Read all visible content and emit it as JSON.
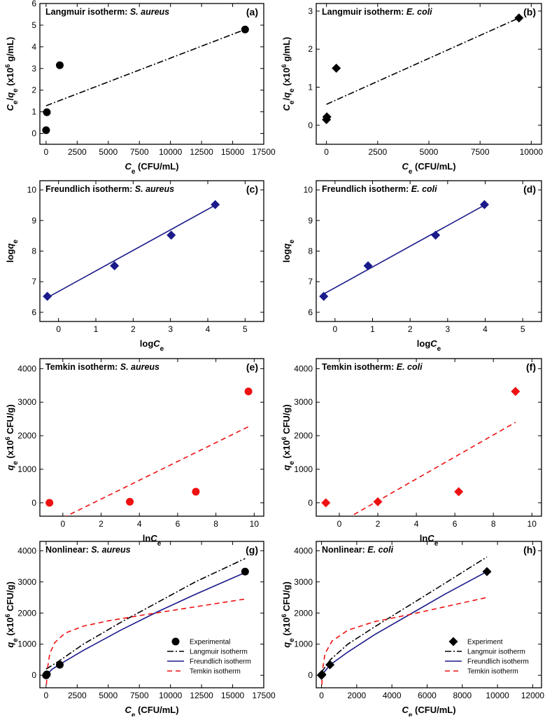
{
  "figure_labels": {
    "a": {
      "title_prefix": "Langmuir isotherm: ",
      "organism": "S. aureus",
      "label": "(a)"
    },
    "b": {
      "title_prefix": "Langmuir isotherm: ",
      "organism": "E. coli",
      "label": "(b)"
    },
    "c": {
      "title_prefix": "Freundlich isotherm: ",
      "organism": "S. aureus",
      "label": "(c)"
    },
    "d": {
      "title_prefix": "Freundlich isotherm: ",
      "organism": "E. coli",
      "label": "(d)"
    },
    "e": {
      "title_prefix": "Temkin isotherm: ",
      "organism": "S. aureus",
      "label": "(e)"
    },
    "f": {
      "title_prefix": "Temkin isotherm: ",
      "organism": "E. coli",
      "label": "(f)"
    },
    "g": {
      "title_prefix": "Nonlinear: ",
      "organism": "S. aureus",
      "label": "(g)"
    },
    "h": {
      "title_prefix": "Nonlinear: ",
      "organism": "E. coli",
      "label": "(h)"
    }
  },
  "colors": {
    "navy": "#1a1a8a",
    "red": "#ee1111",
    "black": "#000000"
  },
  "chart_data": [
    {
      "id": "a",
      "type": "scatter",
      "xlabel": "Ce (CFU/mL)",
      "ylabel": "Ce/qe (x10^6 g/mL)",
      "xlim": [
        -500,
        17500
      ],
      "ylim": [
        -0.5,
        6
      ],
      "xticks": [
        0,
        2500,
        5000,
        7500,
        10000,
        12500,
        15000,
        17500
      ],
      "yticks": [
        0,
        1,
        2,
        3,
        4,
        5,
        6
      ],
      "points": [
        {
          "x": 0,
          "y": 0.15
        },
        {
          "x": 60,
          "y": 0.98
        },
        {
          "x": 1100,
          "y": 3.15
        },
        {
          "x": 16000,
          "y": 4.8
        }
      ],
      "marker": "circle",
      "marker_color": "#000000",
      "fit": {
        "x0": 0,
        "y0": 1.28,
        "x1": 16000,
        "y1": 4.8,
        "style": "dashdot",
        "color": "#000000"
      }
    },
    {
      "id": "b",
      "type": "scatter",
      "xlabel": "Ce (CFU/mL)",
      "ylabel": "Ce/qe (x10^6 g/mL)",
      "xlim": [
        -500,
        10500
      ],
      "ylim": [
        -0.5,
        3.2
      ],
      "xticks": [
        0,
        2500,
        5000,
        7500,
        10000
      ],
      "yticks": [
        0,
        1,
        2,
        3
      ],
      "points": [
        {
          "x": 0,
          "y": 0.15
        },
        {
          "x": 20,
          "y": 0.22
        },
        {
          "x": 480,
          "y": 1.5
        },
        {
          "x": 9400,
          "y": 2.82
        }
      ],
      "marker": "diamond",
      "marker_color": "#000000",
      "fit": {
        "x0": 0,
        "y0": 0.55,
        "x1": 9400,
        "y1": 2.82,
        "style": "dashdot",
        "color": "#000000"
      }
    },
    {
      "id": "c",
      "type": "scatter",
      "xlabel": "logCe",
      "ylabel": "logqe",
      "xlim": [
        -0.5,
        5.5
      ],
      "ylim": [
        5.7,
        10.3
      ],
      "xticks": [
        0,
        1,
        2,
        3,
        4,
        5
      ],
      "yticks": [
        6,
        7,
        8,
        9,
        10
      ],
      "points": [
        {
          "x": -0.3,
          "y": 6.52
        },
        {
          "x": 1.5,
          "y": 7.52
        },
        {
          "x": 3.02,
          "y": 8.52
        },
        {
          "x": 4.2,
          "y": 9.52
        }
      ],
      "marker": "diamond",
      "marker_color": "#1a1a8a",
      "fit": {
        "x0": -0.3,
        "y0": 6.48,
        "x1": 4.2,
        "y1": 9.5,
        "style": "solid",
        "color": "#1a1a8a"
      }
    },
    {
      "id": "d",
      "type": "scatter",
      "xlabel": "logCe",
      "ylabel": "logqe",
      "xlim": [
        -0.5,
        5.5
      ],
      "ylim": [
        5.7,
        10.3
      ],
      "xticks": [
        0,
        1,
        2,
        3,
        4,
        5
      ],
      "yticks": [
        6,
        7,
        8,
        9,
        10
      ],
      "points": [
        {
          "x": -0.3,
          "y": 6.52
        },
        {
          "x": 0.88,
          "y": 7.52
        },
        {
          "x": 2.68,
          "y": 8.52
        },
        {
          "x": 3.98,
          "y": 9.52
        }
      ],
      "marker": "diamond",
      "marker_color": "#1a1a8a",
      "fit": {
        "x0": -0.3,
        "y0": 6.6,
        "x1": 3.98,
        "y1": 9.5,
        "style": "solid",
        "color": "#1a1a8a"
      }
    },
    {
      "id": "e",
      "type": "scatter",
      "xlabel": "lnCe",
      "ylabel": "qe (x10^6 CFU/g)",
      "xlim": [
        -1.2,
        10.5
      ],
      "ylim": [
        -400,
        4300
      ],
      "xticks": [
        0,
        2,
        4,
        6,
        8,
        10
      ],
      "yticks": [
        0,
        1000,
        2000,
        3000,
        4000
      ],
      "points": [
        {
          "x": -0.7,
          "y": 0
        },
        {
          "x": 3.5,
          "y": 30
        },
        {
          "x": 6.95,
          "y": 330
        },
        {
          "x": 9.7,
          "y": 3320
        }
      ],
      "marker": "circle",
      "marker_color": "#ee1111",
      "fit": {
        "x0": 0,
        "y0": -450,
        "x1": 9.7,
        "y1": 2270,
        "style": "dashed",
        "color": "#ee1111"
      }
    },
    {
      "id": "f",
      "type": "scatter",
      "xlabel": "lnCe",
      "ylabel": "qe (x10^6 CFU/g)",
      "xlim": [
        -1.2,
        10.5
      ],
      "ylim": [
        -400,
        4300
      ],
      "xticks": [
        0,
        2,
        4,
        6,
        8,
        10
      ],
      "yticks": [
        0,
        1000,
        2000,
        3000,
        4000
      ],
      "points": [
        {
          "x": -0.7,
          "y": 0
        },
        {
          "x": 2.0,
          "y": 30
        },
        {
          "x": 6.2,
          "y": 330
        },
        {
          "x": 9.15,
          "y": 3320
        }
      ],
      "marker": "diamond",
      "marker_color": "#ee1111",
      "fit": {
        "x0": 0,
        "y0": -600,
        "x1": 9.15,
        "y1": 2400,
        "style": "dashed",
        "color": "#ee1111"
      }
    },
    {
      "id": "g",
      "type": "line",
      "xlabel": "Ce (CFU/mL)",
      "ylabel": "qe (x10^6 CFU/g)",
      "xlim": [
        -500,
        17500
      ],
      "ylim": [
        -400,
        4300
      ],
      "xticks": [
        0,
        2500,
        5000,
        7500,
        10000,
        12500,
        15000,
        17500
      ],
      "yticks": [
        0,
        1000,
        2000,
        3000,
        4000
      ],
      "series": [
        {
          "name": "Experimental",
          "kind": "points",
          "marker": "circle",
          "color": "#000000",
          "points": [
            {
              "x": 0,
              "y": 0
            },
            {
              "x": 60,
              "y": 30
            },
            {
              "x": 1100,
              "y": 340
            },
            {
              "x": 16000,
              "y": 3330
            }
          ]
        },
        {
          "name": "Langmuir isotherm",
          "kind": "line",
          "style": "dashdot",
          "color": "#000000",
          "points": [
            {
              "x": 0,
              "y": 200
            },
            {
              "x": 1000,
              "y": 450
            },
            {
              "x": 3000,
              "y": 1000
            },
            {
              "x": 6000,
              "y": 1700
            },
            {
              "x": 9000,
              "y": 2350
            },
            {
              "x": 12000,
              "y": 3000
            },
            {
              "x": 16000,
              "y": 3750
            }
          ]
        },
        {
          "name": "Freundlich isotherm",
          "kind": "line",
          "style": "solid",
          "color": "#1a1a8a",
          "points": [
            {
              "x": 0,
              "y": 0
            },
            {
              "x": 500,
              "y": 200
            },
            {
              "x": 1100,
              "y": 350
            },
            {
              "x": 3000,
              "y": 800
            },
            {
              "x": 6000,
              "y": 1450
            },
            {
              "x": 9000,
              "y": 2050
            },
            {
              "x": 12000,
              "y": 2600
            },
            {
              "x": 16000,
              "y": 3300
            }
          ]
        },
        {
          "name": "Temkin isotherm",
          "kind": "line",
          "style": "dashed",
          "color": "#ee1111",
          "points": [
            {
              "x": 30,
              "y": -300
            },
            {
              "x": 100,
              "y": 200
            },
            {
              "x": 300,
              "y": 700
            },
            {
              "x": 700,
              "y": 1050
            },
            {
              "x": 1500,
              "y": 1350
            },
            {
              "x": 3000,
              "y": 1580
            },
            {
              "x": 5000,
              "y": 1750
            },
            {
              "x": 8000,
              "y": 1950
            },
            {
              "x": 12000,
              "y": 2200
            },
            {
              "x": 16000,
              "y": 2450
            }
          ]
        }
      ],
      "legend": {
        "position": "bottom-right",
        "entries": [
          "Experimental",
          "Langmuir isotherm",
          "Freundlich isotherm",
          "Temkin isotherm"
        ]
      }
    },
    {
      "id": "h",
      "type": "line",
      "xlabel": "Ce (CFU/mL)",
      "ylabel": "qe (x10^6 CFU/g)",
      "xlim": [
        -300,
        12500
      ],
      "ylim": [
        -400,
        4300
      ],
      "xticks": [
        0,
        2000,
        4000,
        6000,
        8000,
        10000,
        12000
      ],
      "yticks": [
        0,
        1000,
        2000,
        3000,
        4000
      ],
      "series": [
        {
          "name": "Experiment",
          "kind": "points",
          "marker": "diamond",
          "color": "#000000",
          "points": [
            {
              "x": 0,
              "y": 0
            },
            {
              "x": 20,
              "y": 30
            },
            {
              "x": 480,
              "y": 340
            },
            {
              "x": 9400,
              "y": 3330
            }
          ]
        },
        {
          "name": "Langmuir isotherm",
          "kind": "line",
          "style": "dashdot",
          "color": "#000000",
          "points": [
            {
              "x": 0,
              "y": 100
            },
            {
              "x": 500,
              "y": 500
            },
            {
              "x": 1500,
              "y": 1000
            },
            {
              "x": 3000,
              "y": 1550
            },
            {
              "x": 5000,
              "y": 2250
            },
            {
              "x": 7000,
              "y": 2950
            },
            {
              "x": 9400,
              "y": 3800
            }
          ]
        },
        {
          "name": "Freundlich isotherm",
          "kind": "line",
          "style": "solid",
          "color": "#1a1a8a",
          "points": [
            {
              "x": 0,
              "y": 0
            },
            {
              "x": 500,
              "y": 340
            },
            {
              "x": 1500,
              "y": 750
            },
            {
              "x": 3000,
              "y": 1300
            },
            {
              "x": 5000,
              "y": 1950
            },
            {
              "x": 7000,
              "y": 2600
            },
            {
              "x": 9400,
              "y": 3330
            }
          ]
        },
        {
          "name": "Temkin isotherm",
          "kind": "line",
          "style": "dashed",
          "color": "#ee1111",
          "points": [
            {
              "x": 20,
              "y": -300
            },
            {
              "x": 60,
              "y": 200
            },
            {
              "x": 200,
              "y": 700
            },
            {
              "x": 600,
              "y": 1100
            },
            {
              "x": 1500,
              "y": 1450
            },
            {
              "x": 3000,
              "y": 1720
            },
            {
              "x": 5000,
              "y": 1950
            },
            {
              "x": 7000,
              "y": 2200
            },
            {
              "x": 9400,
              "y": 2500
            }
          ]
        }
      ],
      "legend": {
        "position": "bottom-right",
        "entries": [
          "Experiment",
          "Langmuir isotherm",
          "Freundlich isotherm",
          "Temkin isotherm"
        ]
      }
    }
  ]
}
